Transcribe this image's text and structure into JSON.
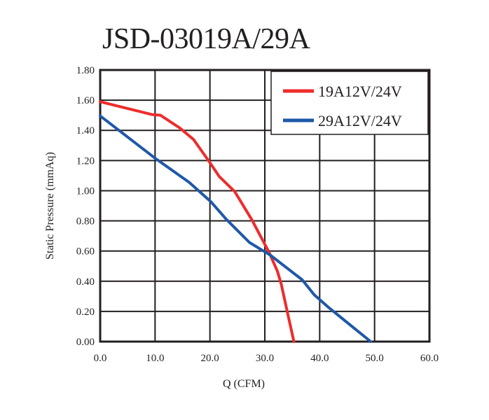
{
  "chart_data": {
    "type": "line",
    "title": "JSD-03019A/29A",
    "xlabel": "Q (CFM)",
    "ylabel": "Static Pressure (mmAq)",
    "xlim": [
      0,
      60
    ],
    "ylim": [
      0,
      1.8
    ],
    "xticks": [
      "0.0",
      "10.0",
      "20.0",
      "30.0",
      "40.0",
      "50.0",
      "60.0"
    ],
    "yticks": [
      "0.00",
      "0.20",
      "0.40",
      "0.60",
      "0.80",
      "1.00",
      "1.20",
      "1.40",
      "1.60",
      "1.80"
    ],
    "grid": true,
    "legend": "top-right",
    "series": [
      {
        "name": "19A12V/24V",
        "color": "#ee2c2c",
        "x": [
          0,
          9.4,
          11,
          14.5,
          17,
          20,
          21.7,
          24.5,
          27.6,
          30.8,
          32.3,
          33,
          34.2,
          35.3
        ],
        "y": [
          1.59,
          1.505,
          1.5,
          1.416,
          1.34,
          1.186,
          1.094,
          0.995,
          0.81,
          0.59,
          0.466,
          0.38,
          0.18,
          0
        ]
      },
      {
        "name": "29A12V/24V",
        "color": "#1f58a8",
        "x": [
          0,
          10.2,
          16.2,
          20.2,
          23,
          27.2,
          31,
          36.8,
          39,
          41.5,
          49.3
        ],
        "y": [
          1.496,
          1.21,
          1.056,
          0.926,
          0.81,
          0.657,
          0.573,
          0.41,
          0.31,
          0.23,
          0
        ]
      }
    ]
  }
}
